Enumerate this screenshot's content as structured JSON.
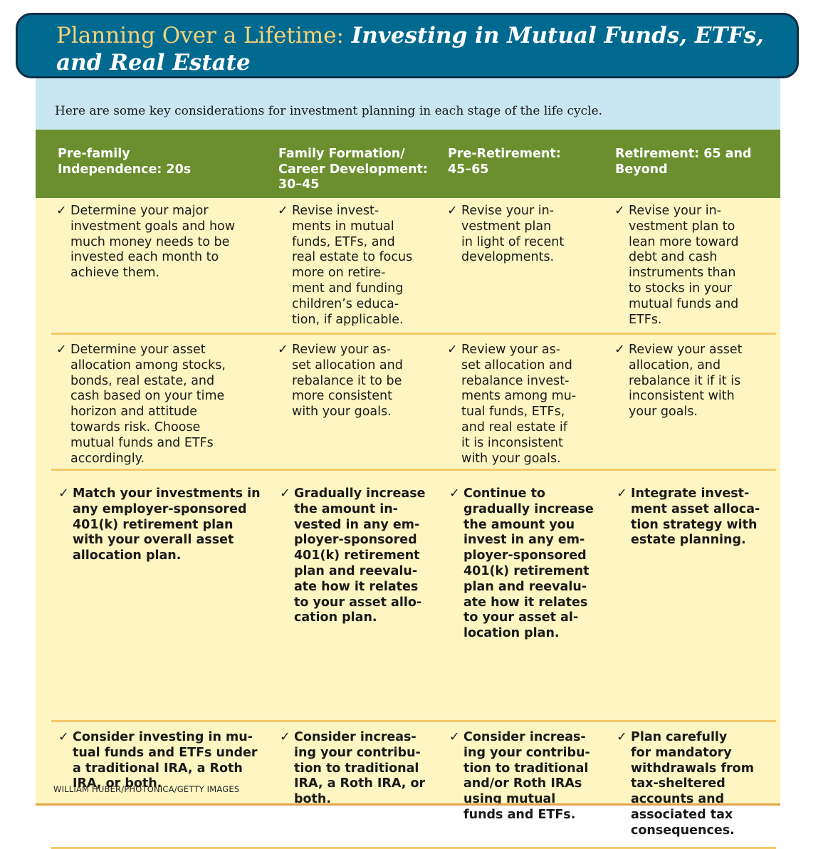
{
  "title": {
    "lead": "Planning Over a Lifetime:",
    "rest_line1": " Investing in Mutual Funds, ETFs,",
    "rest_line2": "and Real Estate"
  },
  "intro": "Here are some key considerations for investment planning in each stage of the life cycle.",
  "columns": [
    "Pre-family\nIndependence: 20s",
    "Family Formation/\nCareer Development:\n30–45",
    "Pre-Retirement:\n45–65",
    "Retirement: 65 and\nBeyond"
  ],
  "check_symbol": "✓",
  "rows": [
    [
      "Determine your major\ninvestment goals and how\nmuch money needs to be\ninvested each month to\nachieve them.",
      "Revise invest-\nments in mutual\nfunds, ETFs, and\nreal estate to focus\nmore on retire-\nment and funding\nchildren’s educa-\ntion, if applicable.",
      "Revise your in-\nvestment plan\nin light of recent\ndevelopments.",
      "Revise your in-\nvestment plan to\nlean more toward\ndebt and cash\ninstruments than\nto stocks in your\nmutual funds and\nETFs."
    ],
    [
      "Determine your asset\nallocation among stocks,\nbonds, real estate, and\ncash based on your time\nhorizon and attitude\ntowards risk. Choose\nmutual funds and ETFs\naccordingly.",
      "Review your as-\nset allocation and\nrebalance it to be\nmore consistent\nwith your goals.",
      "Review your as-\nset allocation and\nrebalance invest-\nments among mu-\ntual funds, ETFs,\nand real estate if\nit is inconsistent\nwith your goals.",
      "Review your asset\nallocation, and\nrebalance it if it is\ninconsistent with\nyour goals."
    ],
    [
      "Match your investments in\nany employer-sponsored\n401(k) retirement plan\nwith your overall asset\nallocation plan.",
      "Gradually increase\nthe amount in-\nvested in any em-\nployer-sponsored\n401(k) retirement\nplan and reevalu-\nate how it relates\nto your asset allo-\ncation plan.",
      "Continue to\ngradually increase\nthe amount you\ninvest in any em-\nployer-sponsored\n401(k) retirement\nplan and reevalu-\nate how it relates\nto your asset al-\nlocation plan.",
      "Integrate invest-\nment asset alloca-\ntion strategy with\nestate planning."
    ],
    [
      "Consider investing in mu-\ntual funds and ETFs under\na traditional IRA, a Roth\nIRA, or both.",
      "Consider increas-\ning your contribu-\ntion to traditional\nIRA, a Roth IRA, or\nboth.",
      "Consider increas-\ning your contribu-\ntion to traditional\nand/or Roth IRAs\nusing mutual\nfunds and ETFs.",
      "Plan carefully\nfor mandatory\nwithdrawals from\ntax-sheltered\naccounts and\nassociated tax\nconsequences."
    ]
  ],
  "credit": "WILLIAM HUBER/PHOTONICA/GETTY IMAGES"
}
